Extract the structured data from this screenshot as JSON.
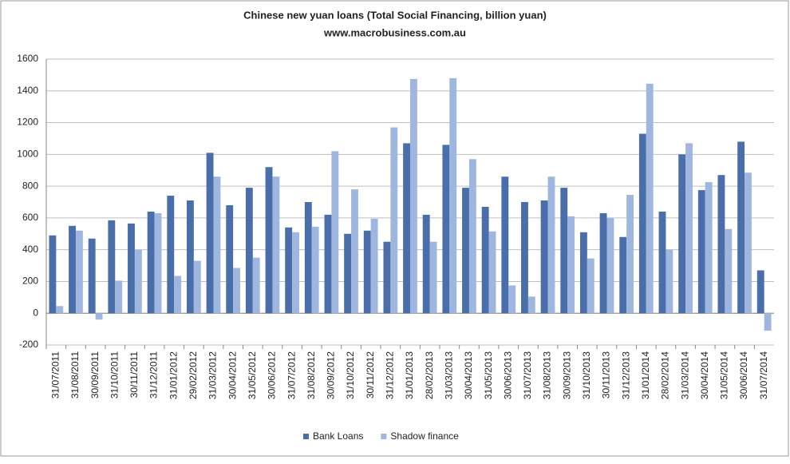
{
  "chart_data": {
    "type": "bar",
    "title": "Chinese new yuan loans (Total Social Financing, billion yuan)",
    "subtitle": "www.macrobusiness.com.au",
    "categories": [
      "31/07/2011",
      "31/08/2011",
      "30/09/2011",
      "31/10/2011",
      "30/11/2011",
      "31/12/2011",
      "31/01/2012",
      "29/02/2012",
      "31/03/2012",
      "30/04/2012",
      "31/05/2012",
      "30/06/2012",
      "31/07/2012",
      "31/08/2012",
      "30/09/2012",
      "31/10/2012",
      "30/11/2012",
      "31/12/2012",
      "31/01/2013",
      "28/02/2013",
      "31/03/2013",
      "30/04/2013",
      "31/05/2013",
      "30/06/2013",
      "31/07/2013",
      "31/08/2013",
      "30/09/2013",
      "31/10/2013",
      "30/11/2013",
      "31/12/2013",
      "31/01/2014",
      "28/02/2014",
      "31/03/2014",
      "30/04/2014",
      "31/05/2014",
      "30/06/2014",
      "31/07/2014"
    ],
    "series": [
      {
        "name": "Bank Loans",
        "color": "#4a6ea9",
        "values": [
          490,
          550,
          470,
          585,
          565,
          640,
          740,
          710,
          1010,
          680,
          790,
          920,
          540,
          700,
          620,
          500,
          520,
          450,
          1070,
          620,
          1060,
          790,
          670,
          860,
          700,
          710,
          790,
          510,
          630,
          480,
          1130,
          640,
          1000,
          775,
          870,
          1080,
          270
        ]
      },
      {
        "name": "Shadow finance",
        "color": "#9fb6de",
        "values": [
          45,
          520,
          -40,
          205,
          400,
          630,
          235,
          330,
          860,
          285,
          350,
          860,
          510,
          545,
          1020,
          780,
          595,
          1170,
          1475,
          450,
          1480,
          970,
          515,
          175,
          105,
          860,
          610,
          345,
          600,
          745,
          1445,
          400,
          1070,
          825,
          530,
          885,
          -110
        ]
      }
    ],
    "ylim": [
      -200,
      1600
    ],
    "yticks": [
      -200,
      0,
      200,
      400,
      600,
      800,
      1000,
      1200,
      1400,
      1600
    ],
    "grid": true,
    "legend": "bottom"
  }
}
